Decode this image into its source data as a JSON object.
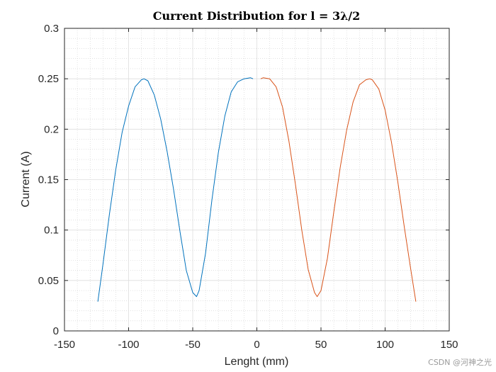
{
  "chart_data": {
    "type": "line",
    "title": "Current Distribution for l = 3λ/2",
    "xlabel": "Lenght (mm)",
    "ylabel": "Current (A)",
    "xlim": [
      -150,
      150
    ],
    "ylim": [
      0,
      0.3
    ],
    "xticks": [
      -150,
      -100,
      -50,
      0,
      50,
      100,
      150
    ],
    "yticks": [
      0,
      0.05,
      0.1,
      0.15,
      0.2,
      0.25,
      0.3
    ],
    "xtick_labels": [
      "-150",
      "-100",
      "-50",
      "0",
      "50",
      "100",
      "150"
    ],
    "ytick_labels": [
      "0",
      "0.05",
      "0.1",
      "0.15",
      "0.2",
      "0.25",
      "0.3"
    ],
    "grid": true,
    "minor_grid": true,
    "series": [
      {
        "color": "#0072BD",
        "x": [
          -124,
          -120,
          -115,
          -110,
          -105,
          -100,
          -95,
          -90,
          -88,
          -85,
          -80,
          -75,
          -70,
          -65,
          -60,
          -55,
          -50,
          -47,
          -45,
          -40,
          -35,
          -30,
          -25,
          -20,
          -15,
          -10,
          -5,
          -3
        ],
        "y": [
          0.029,
          0.066,
          0.115,
          0.16,
          0.197,
          0.223,
          0.242,
          0.249,
          0.25,
          0.248,
          0.234,
          0.21,
          0.178,
          0.141,
          0.099,
          0.06,
          0.038,
          0.034,
          0.04,
          0.077,
          0.13,
          0.177,
          0.213,
          0.237,
          0.247,
          0.25,
          0.251,
          0.25
        ]
      },
      {
        "color": "#D95319",
        "x": [
          3,
          5,
          10,
          15,
          20,
          25,
          30,
          35,
          40,
          45,
          47,
          50,
          55,
          60,
          65,
          70,
          75,
          80,
          85,
          88,
          90,
          95,
          100,
          105,
          110,
          115,
          120,
          124
        ],
        "y": [
          0.25,
          0.251,
          0.25,
          0.242,
          0.222,
          0.188,
          0.146,
          0.1,
          0.061,
          0.038,
          0.034,
          0.04,
          0.072,
          0.118,
          0.162,
          0.199,
          0.227,
          0.244,
          0.249,
          0.25,
          0.249,
          0.24,
          0.219,
          0.187,
          0.147,
          0.103,
          0.061,
          0.029
        ]
      }
    ]
  },
  "watermark": "CSDN @河神之光"
}
